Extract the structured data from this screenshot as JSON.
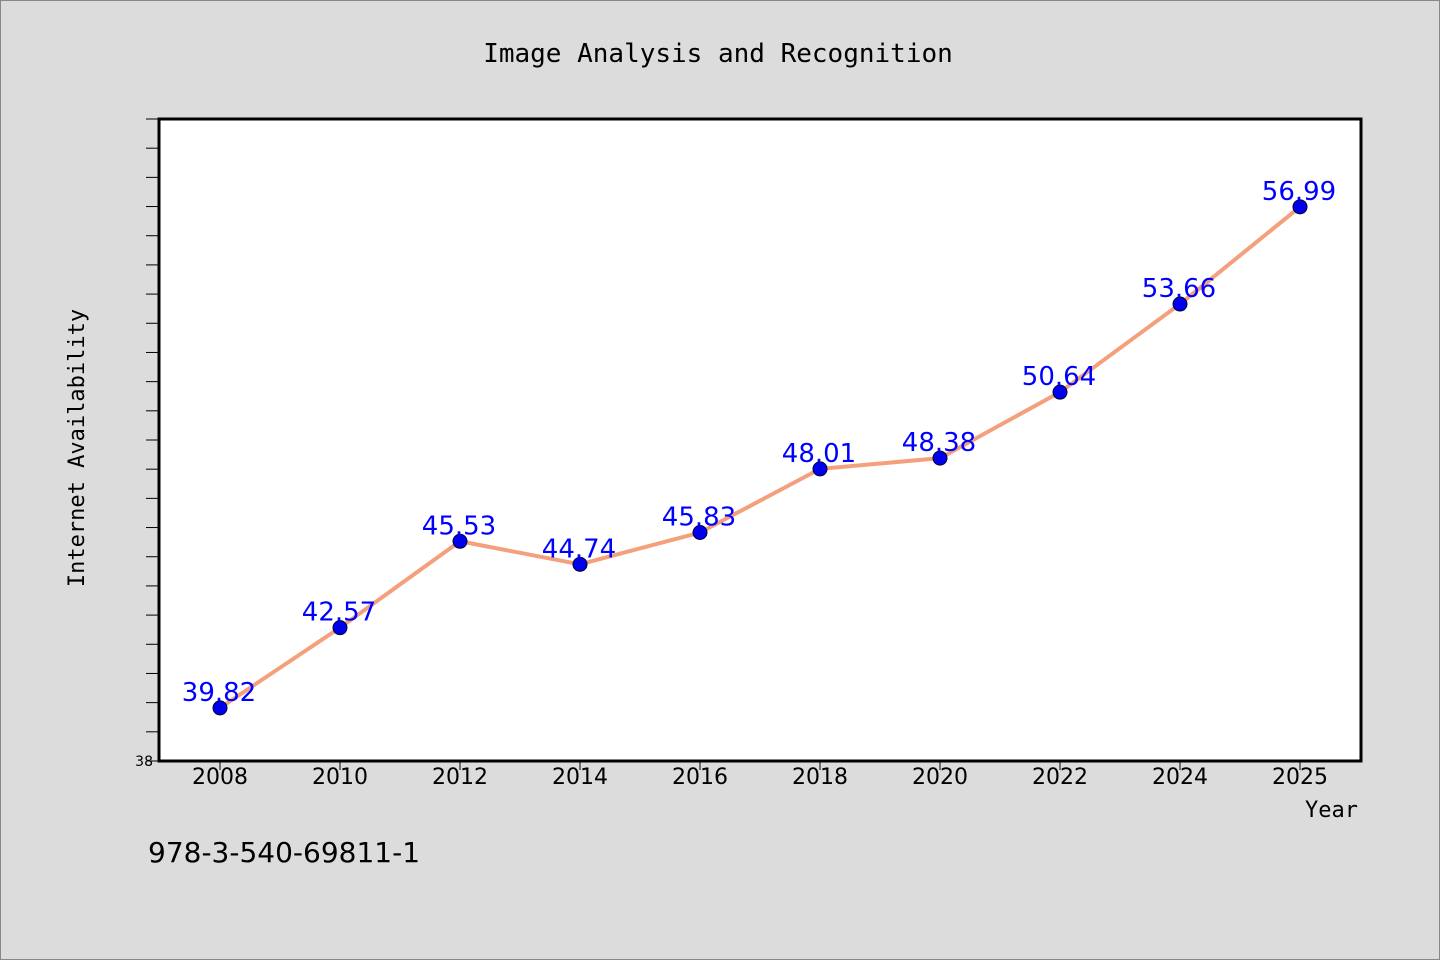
{
  "chart_data": {
    "type": "line",
    "title": "Image Analysis and Recognition",
    "xlabel": "Year",
    "ylabel": "Internet Availability",
    "x": [
      "2008",
      "2010",
      "2012",
      "2014",
      "2016",
      "2018",
      "2020",
      "2022",
      "2024",
      "2025"
    ],
    "series": [
      {
        "values": [
          39.82,
          42.57,
          45.53,
          44.74,
          45.83,
          48.01,
          48.38,
          50.64,
          53.66,
          56.99
        ],
        "data_labels": [
          "39.82",
          "42.57",
          "45.53",
          "44.74",
          "45.83",
          "48.01",
          "48.38",
          "50.64",
          "53.66",
          "56.99"
        ]
      }
    ],
    "ylim": [
      38,
      60
    ],
    "y_tick_labels": [
      "38"
    ],
    "grid": false,
    "legend": "none",
    "colors": {
      "line": "#f4a07c",
      "marker": "#0000ee",
      "data_label": "#0000ff",
      "plot_background": "#ffffff",
      "page_background": "#dcdcdc"
    }
  },
  "footer": {
    "isbn": "978-3-540-69811-1"
  }
}
